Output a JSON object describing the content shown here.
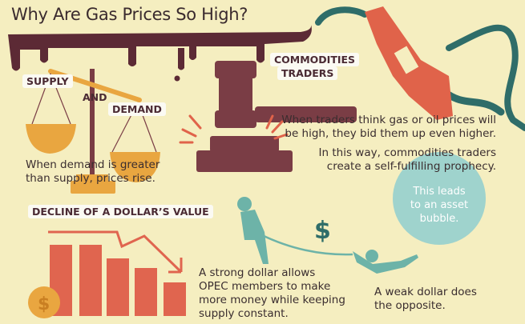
{
  "title": "Why Are Gas Prices So High?",
  "supply_demand": {
    "supply_label": "SUPPLY",
    "and_label": "AND",
    "demand_label": "DEMAND",
    "caption_line1": "When demand is greater",
    "caption_line2": "than supply, prices rise."
  },
  "traders": {
    "label_line1": "COMMODITIES",
    "label_line2": "TRADERS",
    "text1_line1": "When traders think gas or oil prices will",
    "text1_line2": "be high, they bid them up even higher.",
    "text2_line1": "In this way, commodities traders",
    "text2_line2": "create a self-fulfilling prophecy.",
    "bubble_line1": "This leads",
    "bubble_line2": "to an asset",
    "bubble_line3": "bubble."
  },
  "dollar": {
    "label": "DECLINE OF A DOLLAR’S VALUE",
    "strong_line1": "A strong dollar allows",
    "strong_line2": "OPEC members to make",
    "strong_line3": "more money while keeping",
    "strong_line4": "supply constant.",
    "weak_line1": "A weak dollar does",
    "weak_line2": "the opposite.",
    "coin_symbol": "$",
    "floating_symbol": "$"
  },
  "colors": {
    "background": "#f5eec0",
    "oil": "#5c2a35",
    "gavel": "#7a3d45",
    "scale": "#e9a640",
    "pump": "#e0634a",
    "hose": "#2f6d69",
    "figures": "#6db3a8",
    "bubble": "#9fd3cd",
    "bars": "#e0654f"
  }
}
